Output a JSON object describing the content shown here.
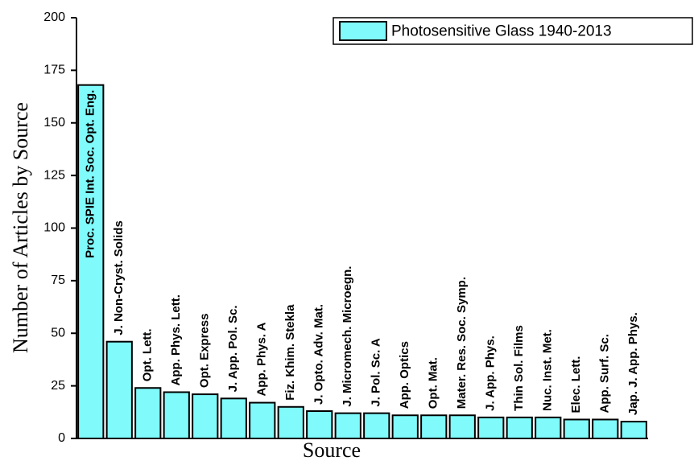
{
  "chart_data": {
    "type": "bar",
    "ylabel": "Number of Articles by Source",
    "xlabel": "Source",
    "categories": [
      "Proc. SPIE Int. Soc. Opt. Eng.",
      "J. Non-Cryst. Solids",
      "Opt. Lett.",
      "App. Phys. Lett.",
      "Opt. Express",
      "J. App. Pol. Sc.",
      "App. Phys. A",
      "Fiz. Khim. Stekla",
      "J. Opto. Adv. Mat.",
      "J. Micromech. Microegn.",
      "J. Pol. Sc. A",
      "App. Optics",
      "Opt. Mat.",
      "Mater. Res. Soc. Symp.",
      "J. App. Phys.",
      "Thin Sol. Films",
      "Nuc. Inst. Met.",
      "Elec. Lett.",
      "App. Surf. Sc.",
      "Jap. J. App. Phys."
    ],
    "series": [
      {
        "name": "Photosensitive Glass 1940-2013",
        "color": "#80fafa",
        "values": [
          168,
          46,
          24,
          22,
          21,
          19,
          17,
          15,
          13,
          12,
          12,
          11,
          11,
          11,
          10,
          10,
          10,
          9,
          9,
          8
        ]
      }
    ],
    "ylim": [
      0,
      200
    ],
    "yticks": [
      0,
      25,
      50,
      75,
      100,
      125,
      150,
      175,
      200
    ],
    "legend": "upper right"
  }
}
